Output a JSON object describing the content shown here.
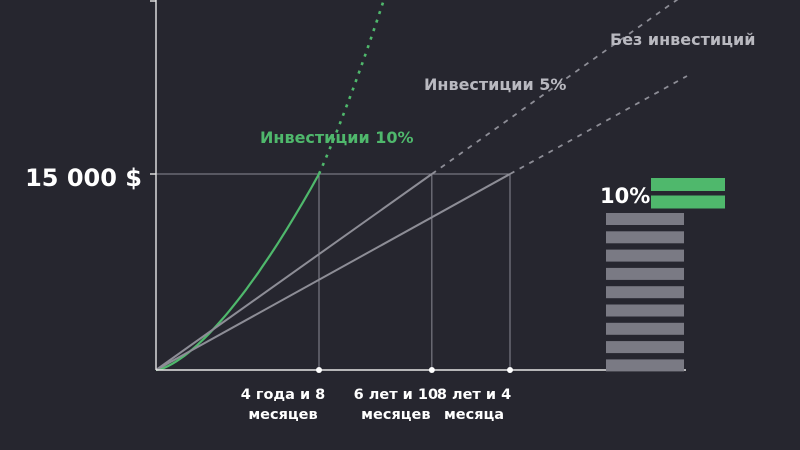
{
  "colors": {
    "background": "#26262f",
    "axis": "#e6e6e6",
    "guide": "#8a8a94",
    "invest10": "#4fb86c",
    "invest5": "#8d8d96",
    "no_invest": "#8d8d96",
    "label_gray": "#b9b9c0",
    "bar_gray": "#7a7a84",
    "bar_green": "#4fb86c",
    "text_white": "#ffffff"
  },
  "chart_data": {
    "type": "line",
    "target_label": "15 000 $",
    "x_marks": [
      {
        "value": 4.667,
        "label": [
          "4 года и 8",
          "месяцев"
        ]
      },
      {
        "value": 6.833,
        "label": [
          "6 лет и 10",
          "месяцев"
        ]
      },
      {
        "value": 8.333,
        "label": [
          "8 лет и 4",
          "месяца"
        ]
      }
    ],
    "series": [
      {
        "name": "Инвестиции 10%",
        "key": "invest10",
        "rate": 0.1,
        "reach_years": 4.667
      },
      {
        "name": "Инвестиции 5%",
        "key": "invest5",
        "rate": 0.05,
        "reach_years": 6.833
      },
      {
        "name": "Без инвестиций",
        "key": "no_invest",
        "rate": 0.0,
        "reach_years": 8.333
      }
    ],
    "grid": false,
    "legend": "inline labels"
  },
  "bar_stack": {
    "label": "10%",
    "gray_bars": 9,
    "green_bars": 2
  }
}
